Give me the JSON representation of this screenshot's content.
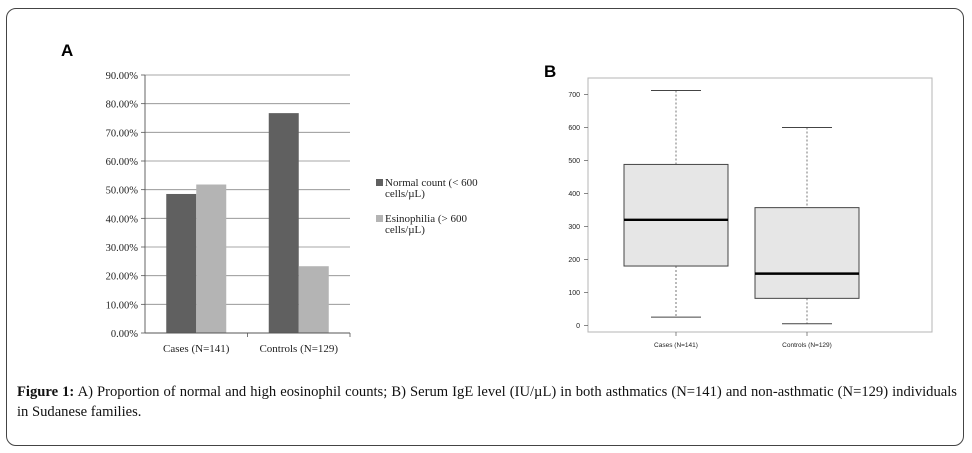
{
  "caption": {
    "prefix": "Figure 1:",
    "text": "A) Proportion of normal and high eosinophil counts; B) Serum IgE level (IU/µL) in both asthmatics (N=141) and non-asthmatic (N=129) individuals in Sudanese families."
  },
  "colors": {
    "normal": "#606060",
    "esinophilia": "#b4b4b4",
    "box_fill": "#e6e6e6",
    "median": "#000000"
  },
  "chart_data": [
    {
      "panel": "A",
      "type": "bar",
      "categories": [
        "Cases (N=141)",
        "Controls (N=129)"
      ],
      "series": [
        {
          "name": "Normal count (< 600 cells/µL)",
          "values": [
            48.5,
            76.7
          ]
        },
        {
          "name": "Esinophilia (> 600 cells/µL)",
          "values": [
            51.8,
            23.3
          ]
        }
      ],
      "ylim": [
        0,
        90
      ],
      "yticks": [
        "0.00%",
        "10.00%",
        "20.00%",
        "30.00%",
        "40.00%",
        "50.00%",
        "60.00%",
        "70.00%",
        "80.00%",
        "90.00%"
      ],
      "grid": true,
      "legend": "right",
      "legend_lines": [
        [
          "Normal count (< 600",
          "cells/µL)"
        ],
        [
          "Esinophilia (> 600",
          "cells/µL)"
        ]
      ]
    },
    {
      "panel": "B",
      "type": "box",
      "categories": [
        "Cases (N=141)",
        "Controls (N=129)"
      ],
      "boxes": [
        {
          "min": 25,
          "q1": 180,
          "median": 320,
          "q3": 488,
          "max": 712
        },
        {
          "min": 5,
          "q1": 82,
          "median": 157,
          "q3": 357,
          "max": 600
        }
      ],
      "ylim": [
        -20,
        750
      ],
      "yticks": [
        0,
        100,
        200,
        300,
        400,
        500,
        600,
        700
      ],
      "grid": false
    }
  ]
}
